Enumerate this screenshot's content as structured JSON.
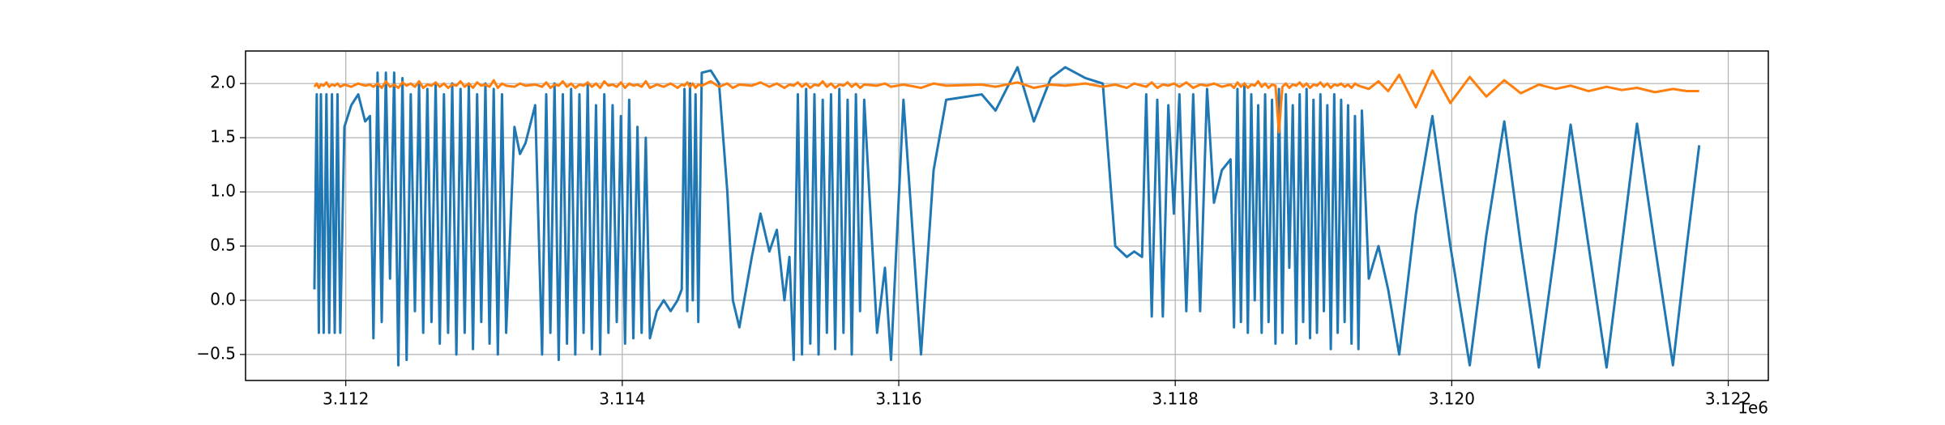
{
  "chart_data": {
    "type": "line",
    "x_offset_label": "1e6",
    "xlim": [
      3111275,
      3122290
    ],
    "ylim": [
      -0.74,
      2.3
    ],
    "xticks": [
      {
        "value": 3112000,
        "label": "3.112"
      },
      {
        "value": 3114000,
        "label": "3.114"
      },
      {
        "value": 3116000,
        "label": "3.116"
      },
      {
        "value": 3118000,
        "label": "3.118"
      },
      {
        "value": 3120000,
        "label": "3.120"
      },
      {
        "value": 3122000,
        "label": "3.122"
      }
    ],
    "yticks": [
      {
        "value": -0.5,
        "label": "−0.5"
      },
      {
        "value": 0,
        "label": "0.0"
      },
      {
        "value": 0.5,
        "label": "0.5"
      },
      {
        "value": 1,
        "label": "1.0"
      },
      {
        "value": 1.5,
        "label": "1.5"
      },
      {
        "value": 2,
        "label": "2.0"
      }
    ],
    "grid": true,
    "x": [
      3111773,
      3111790,
      3111805,
      3111820,
      3111840,
      3111860,
      3111880,
      3111900,
      3111920,
      3111940,
      3111960,
      3111990,
      3112040,
      3112090,
      3112140,
      3112175,
      3112200,
      3112230,
      3112260,
      3112290,
      3112320,
      3112350,
      3112380,
      3112410,
      3112440,
      3112470,
      3112500,
      3112530,
      3112560,
      3112590,
      3112620,
      3112650,
      3112680,
      3112710,
      3112740,
      3112770,
      3112800,
      3112830,
      3112860,
      3112890,
      3112920,
      3112950,
      3112980,
      3113010,
      3113040,
      3113070,
      3113100,
      3113130,
      3113160,
      3113220,
      3113260,
      3113300,
      3113370,
      3113420,
      3113450,
      3113480,
      3113510,
      3113540,
      3113570,
      3113600,
      3113630,
      3113660,
      3113690,
      3113720,
      3113750,
      3113780,
      3113810,
      3113840,
      3113870,
      3113900,
      3113930,
      3113960,
      3113990,
      3114020,
      3114050,
      3114080,
      3114110,
      3114140,
      3114170,
      3114200,
      3114250,
      3114300,
      3114350,
      3114400,
      3114430,
      3114450,
      3114470,
      3114490,
      3114510,
      3114530,
      3114550,
      3114575,
      3114640,
      3114700,
      3114760,
      3114800,
      3114847,
      3114937,
      3115000,
      3115064,
      3115118,
      3115173,
      3115209,
      3115240,
      3115270,
      3115300,
      3115330,
      3115360,
      3115390,
      3115420,
      3115450,
      3115480,
      3115510,
      3115540,
      3115570,
      3115600,
      3115630,
      3115660,
      3115690,
      3115720,
      3115750,
      3115843,
      3115900,
      3115944,
      3116034,
      3116161,
      3116252,
      3116343,
      3116600,
      3116700,
      3116859,
      3116977,
      3117100,
      3117204,
      3117350,
      3117476,
      3117566,
      3117650,
      3117703,
      3117760,
      3117790,
      3117830,
      3117870,
      3117910,
      3117950,
      3117990,
      3118030,
      3118080,
      3118130,
      3118180,
      3118230,
      3118280,
      3118337,
      3118400,
      3118425,
      3118450,
      3118475,
      3118500,
      3118525,
      3118550,
      3118575,
      3118600,
      3118625,
      3118650,
      3118675,
      3118700,
      3118725,
      3118750,
      3118775,
      3118800,
      3118825,
      3118850,
      3118875,
      3118900,
      3118925,
      3118950,
      3118975,
      3119000,
      3119025,
      3119050,
      3119075,
      3119100,
      3119125,
      3119150,
      3119175,
      3119200,
      3119225,
      3119250,
      3119275,
      3119300,
      3119325,
      3119350,
      3119400,
      3119470,
      3119540,
      3119620,
      3119740,
      3119860,
      3119990,
      3120130,
      3120250,
      3120380,
      3120500,
      3120630,
      3120750,
      3120860,
      3120990,
      3121120,
      3121230,
      3121340,
      3121470,
      3121600,
      3121700,
      3121790
    ],
    "series": [
      {
        "color": "#1f77b4",
        "values": [
          0.1,
          1.9,
          -0.3,
          1.9,
          -0.3,
          1.9,
          -0.3,
          1.9,
          -0.3,
          1.9,
          -0.3,
          1.6,
          1.8,
          1.9,
          1.65,
          1.7,
          -0.35,
          2.1,
          -0.2,
          2.1,
          0.2,
          2.1,
          -0.6,
          2.05,
          -0.55,
          1.9,
          -0.1,
          2.0,
          -0.3,
          1.95,
          -0.2,
          2.0,
          -0.4,
          1.9,
          -0.3,
          2.0,
          -0.5,
          1.95,
          -0.3,
          2.0,
          -0.45,
          1.9,
          -0.2,
          2.0,
          -0.4,
          1.95,
          -0.5,
          1.9,
          -0.3,
          1.6,
          1.35,
          1.45,
          1.8,
          -0.5,
          1.9,
          -0.3,
          2.0,
          -0.55,
          1.9,
          -0.4,
          1.95,
          -0.5,
          1.9,
          -0.3,
          2.0,
          -0.45,
          1.8,
          -0.5,
          1.9,
          -0.3,
          1.8,
          -0.2,
          1.7,
          -0.4,
          1.85,
          -0.35,
          1.6,
          -0.3,
          1.5,
          -0.35,
          -0.1,
          0.0,
          -0.1,
          0.0,
          0.1,
          1.95,
          -0.1,
          2.0,
          0.0,
          1.9,
          -0.2,
          2.1,
          2.12,
          2.0,
          1.0,
          0.0,
          -0.25,
          0.4,
          0.8,
          0.45,
          0.65,
          0.0,
          0.4,
          -0.55,
          1.9,
          -0.5,
          1.95,
          -0.4,
          1.9,
          -0.5,
          1.85,
          -0.3,
          1.9,
          -0.45,
          1.95,
          -0.3,
          1.85,
          -0.5,
          1.9,
          -0.1,
          1.85,
          -0.3,
          0.3,
          -0.55,
          1.85,
          -0.5,
          1.2,
          1.85,
          1.9,
          1.75,
          2.15,
          1.65,
          2.05,
          2.15,
          2.05,
          2.0,
          0.5,
          0.4,
          0.45,
          0.4,
          1.9,
          -0.15,
          1.85,
          -0.15,
          1.8,
          0.8,
          1.9,
          -0.1,
          1.9,
          -0.1,
          1.95,
          0.9,
          1.2,
          1.3,
          -0.25,
          1.95,
          -0.2,
          2.0,
          -0.3,
          1.9,
          0.0,
          1.8,
          -0.3,
          1.9,
          -0.2,
          1.85,
          -0.4,
          1.95,
          -0.3,
          1.9,
          0.3,
          1.8,
          -0.4,
          1.9,
          -0.2,
          1.95,
          -0.35,
          1.85,
          -0.3,
          1.9,
          -0.1,
          1.8,
          -0.45,
          1.9,
          -0.3,
          1.85,
          -0.2,
          1.8,
          -0.4,
          1.7,
          -0.45,
          1.75,
          0.2,
          0.5,
          0.1,
          -0.5,
          0.8,
          1.7,
          0.5,
          -0.6,
          0.6,
          1.65,
          0.5,
          -0.62,
          0.5,
          1.62,
          0.5,
          -0.62,
          0.5,
          1.63,
          0.5,
          -0.6,
          0.5,
          1.43
        ]
      },
      {
        "color": "#ff7f0e",
        "values": [
          1.97,
          2.0,
          1.96,
          1.99,
          1.98,
          2.01,
          1.97,
          1.99,
          1.98,
          2.0,
          1.97,
          1.99,
          1.97,
          2.0,
          1.98,
          1.99,
          1.97,
          2.0,
          1.96,
          2.02,
          1.97,
          1.99,
          1.96,
          2.01,
          1.98,
          2.0,
          1.97,
          2.02,
          1.96,
          1.99,
          1.98,
          2.01,
          1.97,
          2.0,
          1.96,
          1.99,
          1.98,
          2.02,
          1.97,
          2.0,
          1.96,
          2.01,
          1.98,
          1.99,
          1.97,
          2.03,
          1.96,
          2.0,
          1.98,
          1.97,
          2.0,
          1.98,
          1.99,
          1.97,
          2.01,
          1.96,
          1.99,
          1.98,
          2.02,
          1.97,
          2.0,
          1.96,
          1.99,
          1.98,
          2.01,
          1.97,
          2.0,
          1.96,
          2.02,
          1.98,
          1.99,
          1.97,
          2.01,
          1.96,
          2.0,
          1.98,
          1.99,
          1.97,
          2.02,
          1.96,
          1.99,
          1.97,
          2.0,
          1.96,
          1.99,
          1.98,
          2.01,
          1.97,
          2.0,
          1.96,
          1.99,
          1.98,
          2.02,
          1.97,
          2.0,
          1.96,
          1.99,
          1.98,
          2.01,
          1.97,
          2.0,
          1.96,
          1.99,
          1.98,
          2.01,
          1.97,
          2.0,
          1.96,
          1.99,
          1.98,
          2.02,
          1.97,
          2.0,
          1.96,
          1.99,
          1.98,
          2.01,
          1.97,
          2.0,
          1.96,
          1.99,
          1.98,
          2.0,
          1.97,
          1.99,
          1.96,
          2.0,
          1.98,
          1.99,
          1.97,
          2.01,
          1.96,
          1.99,
          1.98,
          2.0,
          1.97,
          1.99,
          1.96,
          2.0,
          1.98,
          1.97,
          2.01,
          1.96,
          1.99,
          1.98,
          2.0,
          1.97,
          2.01,
          1.96,
          1.99,
          1.98,
          2.0,
          1.97,
          1.99,
          1.96,
          2.01,
          1.97,
          2.0,
          1.96,
          1.99,
          1.98,
          2.02,
          1.97,
          2.0,
          1.96,
          1.99,
          1.98,
          1.55,
          1.97,
          2.0,
          1.96,
          1.99,
          1.98,
          2.01,
          1.97,
          2.0,
          1.96,
          1.99,
          1.98,
          2.01,
          1.97,
          2.0,
          1.96,
          1.99,
          1.98,
          2.0,
          1.97,
          1.99,
          1.96,
          2.0,
          1.98,
          1.97,
          1.95,
          2.02,
          1.93,
          2.08,
          1.78,
          2.12,
          1.82,
          2.06,
          1.88,
          2.03,
          1.91,
          1.99,
          1.95,
          1.98,
          1.93,
          1.97,
          1.94,
          1.96,
          1.92,
          1.95,
          1.93,
          1.93
        ]
      }
    ]
  }
}
